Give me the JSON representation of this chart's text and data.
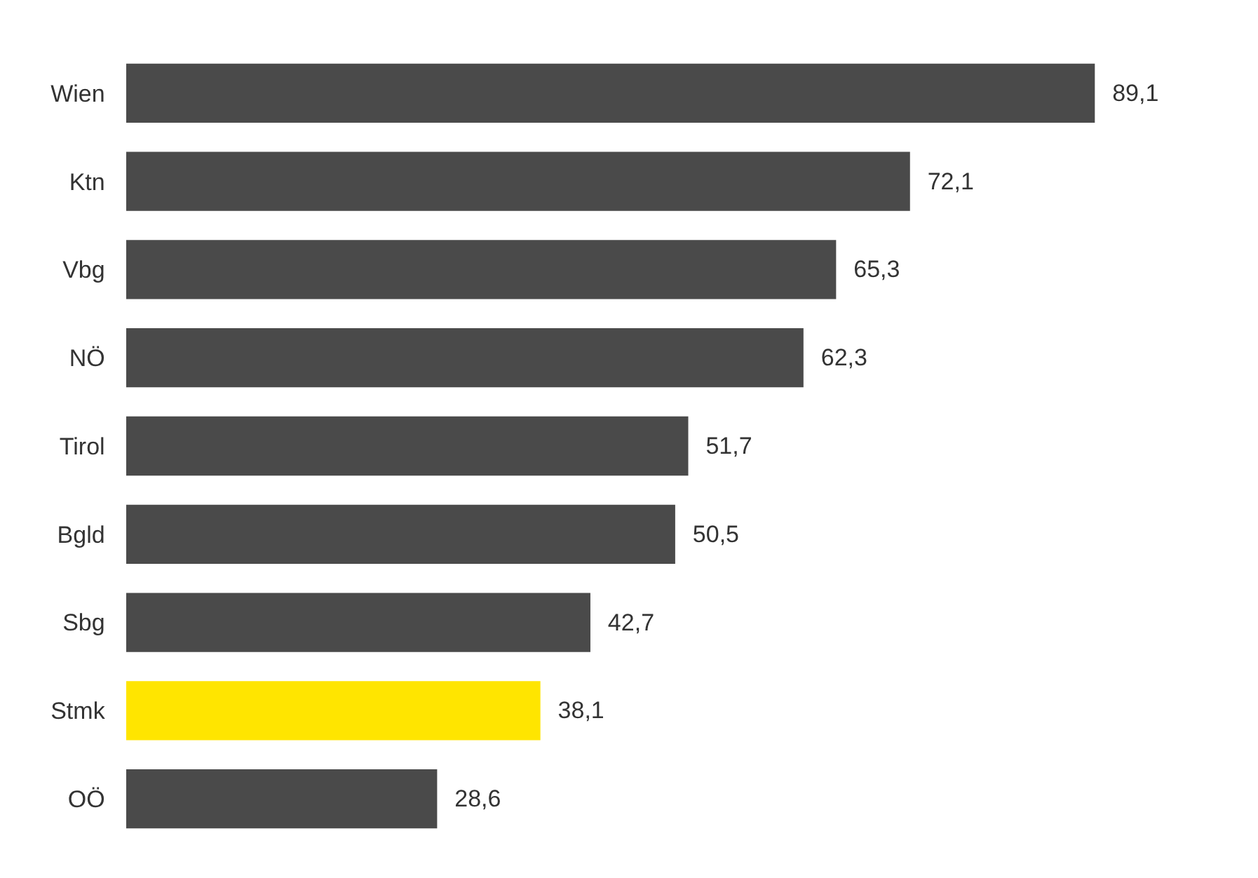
{
  "chart_data": {
    "type": "bar",
    "orientation": "horizontal",
    "categories": [
      "Wien",
      "Ktn",
      "Vbg",
      "NÖ",
      "Tirol",
      "Bgld",
      "Sbg",
      "Stmk",
      "OÖ"
    ],
    "values": [
      89.1,
      72.1,
      65.3,
      62.3,
      51.7,
      50.5,
      42.7,
      38.1,
      28.6
    ],
    "value_labels": [
      "89,1",
      "72,1",
      "65,3",
      "62,3",
      "51,7",
      "50,5",
      "42,7",
      "38,1",
      "28,6"
    ],
    "colors": [
      "#4a4a4a",
      "#4a4a4a",
      "#4a4a4a",
      "#4a4a4a",
      "#4a4a4a",
      "#4a4a4a",
      "#4a4a4a",
      "#ffe500",
      "#4a4a4a"
    ]
  }
}
